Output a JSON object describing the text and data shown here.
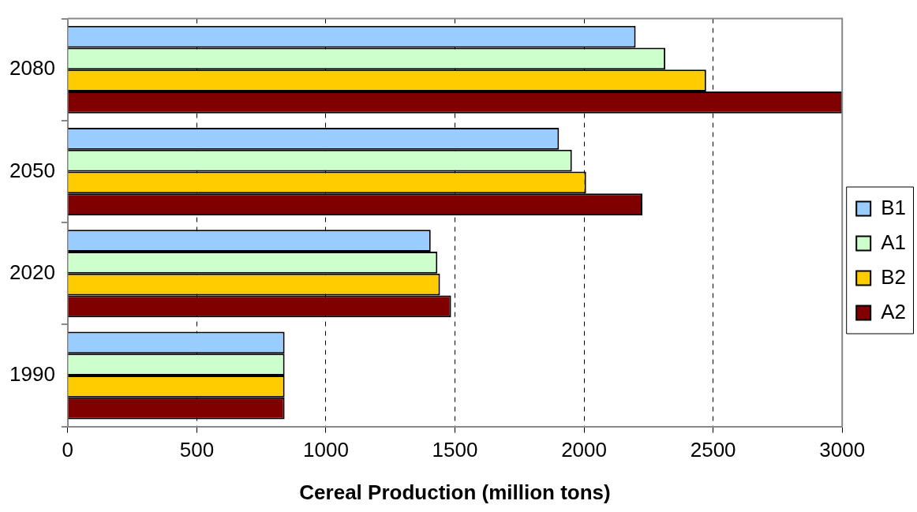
{
  "chart_data": {
    "type": "bar",
    "orientation": "horizontal",
    "xlabel": "Cereal Production (million tons)",
    "categories": [
      "2080",
      "2050",
      "2020",
      "1990"
    ],
    "series": [
      {
        "name": "B1",
        "color": "#99ccff",
        "values": [
          2200,
          1903,
          1406,
          840
        ]
      },
      {
        "name": "A1",
        "color": "#ccffcc",
        "values": [
          2315,
          1953,
          1432,
          840
        ]
      },
      {
        "name": "B2",
        "color": "#ffcc00",
        "values": [
          2473,
          2008,
          1442,
          840
        ]
      },
      {
        "name": "A2",
        "color": "#800000",
        "values": [
          3000,
          2226,
          1485,
          840
        ]
      }
    ],
    "xlim": [
      0,
      3000
    ],
    "xticks": [
      0,
      500,
      1000,
      1500,
      2000,
      2500,
      3000
    ],
    "grid": "x",
    "legend": "right"
  }
}
